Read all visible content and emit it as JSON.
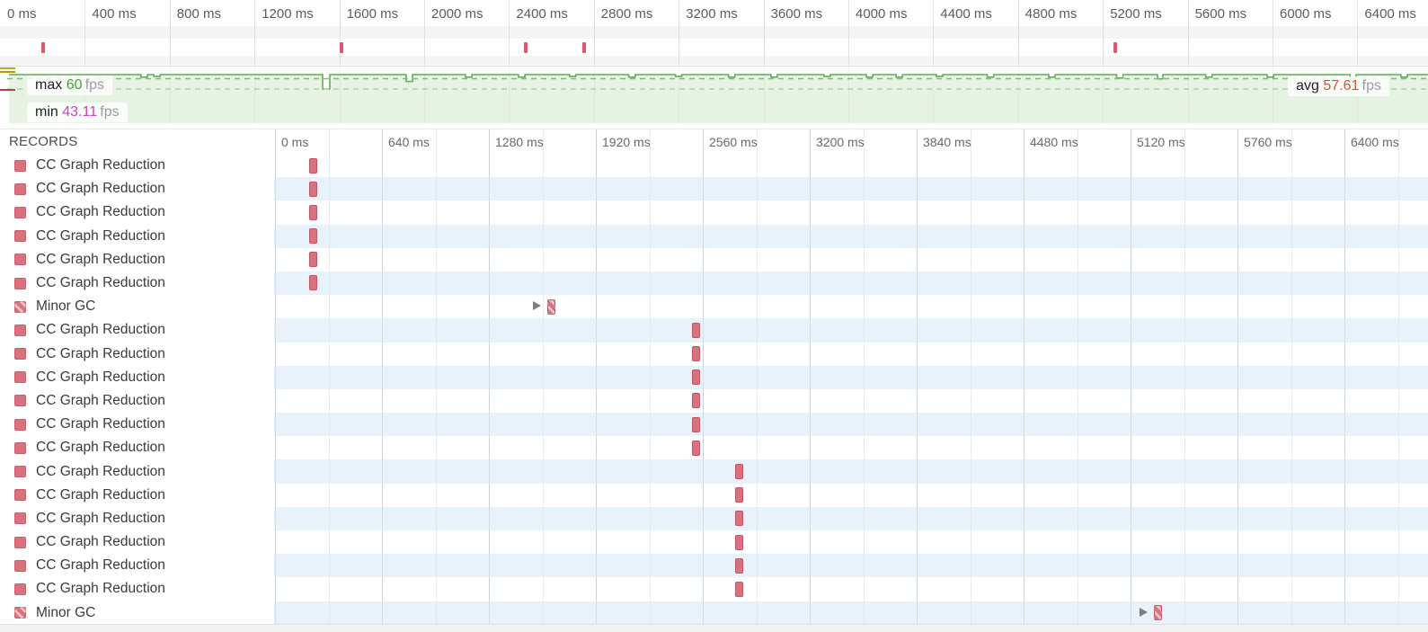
{
  "overview": {
    "ruler_labels": [
      "0 ms",
      "400 ms",
      "800 ms",
      "1200 ms",
      "1600 ms",
      "2000 ms",
      "2400 ms",
      "2800 ms",
      "3200 ms",
      "3600 ms",
      "4000 ms",
      "4400 ms",
      "4800 ms",
      "5200 ms",
      "5600 ms",
      "6000 ms",
      "6400 ms"
    ],
    "tick_interval_ms": 400,
    "markers_ms": [
      205,
      1610,
      2480,
      2755,
      5260
    ],
    "marker_color": "#e0566c"
  },
  "fps": {
    "max": {
      "label": "max",
      "value": "60",
      "unit": "fps"
    },
    "min": {
      "label": "min",
      "value": "43.11",
      "unit": "fps"
    },
    "avg": {
      "label": "avg",
      "value": "57.61",
      "unit": "fps"
    },
    "baseline_fps": 60,
    "dips": [
      {
        "ms": 680,
        "fps": 57
      },
      {
        "ms": 740,
        "fps": 58
      },
      {
        "ms": 1538,
        "fps": 43.11,
        "w_ms": 34
      },
      {
        "ms": 1930,
        "fps": 52,
        "w_ms": 30
      },
      {
        "ms": 2210,
        "fps": 57
      },
      {
        "ms": 2460,
        "fps": 57
      },
      {
        "ms": 2700,
        "fps": 58
      },
      {
        "ms": 2980,
        "fps": 57
      },
      {
        "ms": 3200,
        "fps": 58
      },
      {
        "ms": 3450,
        "fps": 57
      },
      {
        "ms": 3650,
        "fps": 57
      },
      {
        "ms": 3900,
        "fps": 58
      },
      {
        "ms": 4100,
        "fps": 57
      },
      {
        "ms": 4240,
        "fps": 57
      },
      {
        "ms": 4430,
        "fps": 58
      },
      {
        "ms": 4670,
        "fps": 57
      },
      {
        "ms": 4960,
        "fps": 57
      },
      {
        "ms": 5280,
        "fps": 56
      },
      {
        "ms": 5470,
        "fps": 55,
        "w_ms": 25
      },
      {
        "ms": 5700,
        "fps": 57
      },
      {
        "ms": 5990,
        "fps": 57
      },
      {
        "ms": 6380,
        "fps": 53,
        "w_ms": 28
      },
      {
        "ms": 6620,
        "fps": 57
      }
    ],
    "line_color": "#61ae53",
    "fill_color": "#e7f3e2",
    "avg_line_color": "#7cbf6e",
    "min_line_color": "#aed2a6",
    "max_tick_color": "#c7a022",
    "min_tick_color": "#b24457"
  },
  "records": {
    "title": "RECORDS",
    "ruler_labels": [
      "0 ms",
      "640 ms",
      "1280 ms",
      "1920 ms",
      "2560 ms",
      "3200 ms",
      "3840 ms",
      "4480 ms",
      "5120 ms",
      "5760 ms",
      "6400 ms"
    ],
    "tick_interval_ms": 640,
    "rows": [
      {
        "label": "CC Graph Reduction",
        "type": "cc",
        "marker_ms": 205
      },
      {
        "label": "CC Graph Reduction",
        "type": "cc",
        "marker_ms": 205
      },
      {
        "label": "CC Graph Reduction",
        "type": "cc",
        "marker_ms": 205
      },
      {
        "label": "CC Graph Reduction",
        "type": "cc",
        "marker_ms": 205
      },
      {
        "label": "CC Graph Reduction",
        "type": "cc",
        "marker_ms": 205
      },
      {
        "label": "CC Graph Reduction",
        "type": "cc",
        "marker_ms": 205
      },
      {
        "label": "Minor GC",
        "type": "gc",
        "marker_ms": 1630,
        "expandable": true
      },
      {
        "label": "CC Graph Reduction",
        "type": "cc",
        "marker_ms": 2495
      },
      {
        "label": "CC Graph Reduction",
        "type": "cc",
        "marker_ms": 2495
      },
      {
        "label": "CC Graph Reduction",
        "type": "cc",
        "marker_ms": 2495
      },
      {
        "label": "CC Graph Reduction",
        "type": "cc",
        "marker_ms": 2495
      },
      {
        "label": "CC Graph Reduction",
        "type": "cc",
        "marker_ms": 2495
      },
      {
        "label": "CC Graph Reduction",
        "type": "cc",
        "marker_ms": 2495
      },
      {
        "label": "CC Graph Reduction",
        "type": "cc",
        "marker_ms": 2755
      },
      {
        "label": "CC Graph Reduction",
        "type": "cc",
        "marker_ms": 2755
      },
      {
        "label": "CC Graph Reduction",
        "type": "cc",
        "marker_ms": 2755
      },
      {
        "label": "CC Graph Reduction",
        "type": "cc",
        "marker_ms": 2755
      },
      {
        "label": "CC Graph Reduction",
        "type": "cc",
        "marker_ms": 2755
      },
      {
        "label": "CC Graph Reduction",
        "type": "cc",
        "marker_ms": 2755
      },
      {
        "label": "Minor GC",
        "type": "gc",
        "marker_ms": 5260,
        "expandable": true
      }
    ],
    "marker_color": "#d9727f"
  }
}
